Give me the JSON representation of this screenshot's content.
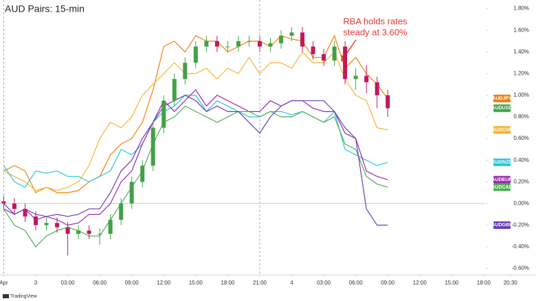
{
  "chart_data": {
    "type": "line",
    "title": "AUD Pairs: 15-min",
    "annotation": [
      "RBA holds rates",
      "steady at 3.60%"
    ],
    "footer": "TradingView",
    "x": [
      -3,
      -2,
      -1,
      0,
      1,
      2,
      3,
      4,
      5,
      6,
      7,
      8,
      9,
      10,
      11,
      12,
      13,
      14,
      15,
      16,
      17,
      18,
      19,
      20,
      21,
      22,
      23,
      24,
      25,
      26,
      27,
      28,
      29,
      30,
      31,
      32,
      33
    ],
    "xlim": [
      -3.35,
      46.9
    ],
    "xticks": [
      {
        "value": -3,
        "label": "Apr"
      },
      {
        "value": 0,
        "label": "3"
      },
      {
        "value": 3,
        "label": "03:00"
      },
      {
        "value": 6,
        "label": "06:00"
      },
      {
        "value": 9,
        "label": "09:00"
      },
      {
        "value": 12,
        "label": "12:00"
      },
      {
        "value": 15,
        "label": "15:00"
      },
      {
        "value": 18,
        "label": "18:00"
      },
      {
        "value": 21,
        "label": "21:00"
      },
      {
        "value": 24,
        "label": "4"
      },
      {
        "value": 27,
        "label": "03:00"
      },
      {
        "value": 30,
        "label": "06:00"
      },
      {
        "value": 33,
        "label": "09:00"
      },
      {
        "value": 36,
        "label": "12:00"
      },
      {
        "value": 39,
        "label": "15:00"
      },
      {
        "value": 42,
        "label": "18:00"
      },
      {
        "value": 44.5,
        "label": "20:30"
      }
    ],
    "ylim": [
      -0.66,
      1.88
    ],
    "yticks": [
      {
        "value": 1.8,
        "label": "1.80%"
      },
      {
        "value": 1.6,
        "label": "1.60%"
      },
      {
        "value": 1.4,
        "label": "1.40%"
      },
      {
        "value": 1.2,
        "label": "1.20%"
      },
      {
        "value": 1.0,
        "label": "1.00%"
      },
      {
        "value": 0.8,
        "label": "0.80%"
      },
      {
        "value": 0.6,
        "label": "0.60%"
      },
      {
        "value": 0.4,
        "label": "0.40%"
      },
      {
        "value": 0.2,
        "label": "0.20%"
      },
      {
        "value": 0,
        "label": "0.00%"
      },
      {
        "value": -0.2,
        "label": "-0.20%"
      },
      {
        "value": -0.4,
        "label": "-0.40%"
      },
      {
        "value": -0.6,
        "label": "-0.60%"
      }
    ],
    "reference_line": 0,
    "session_breaks": [
      -3,
      21
    ],
    "series": [
      {
        "name": "AUDJPY",
        "color": "#f57c00",
        "values": [
          0.3,
          0.35,
          0.3,
          0.1,
          0.15,
          0.1,
          0.1,
          0.12,
          0.2,
          0.25,
          0.45,
          0.55,
          0.6,
          0.75,
          1.05,
          1.45,
          1.5,
          1.4,
          1.55,
          1.5,
          1.5,
          1.4,
          1.45,
          1.5,
          1.5,
          1.45,
          1.55,
          1.52,
          1.5,
          1.35,
          1.35,
          1.55,
          1.25,
          1.35,
          1.2,
          1.1,
          0.97
        ]
      },
      {
        "name": "AUDCHF",
        "color": "#f9b233",
        "values": [
          0.3,
          0.25,
          0.2,
          0.12,
          0.15,
          0.12,
          0.15,
          0.2,
          0.35,
          0.6,
          0.75,
          0.7,
          0.8,
          1.0,
          1.1,
          1.2,
          1.3,
          1.2,
          1.2,
          1.25,
          1.15,
          1.25,
          1.2,
          1.35,
          1.2,
          1.3,
          1.3,
          1.25,
          1.4,
          1.3,
          1.3,
          1.4,
          1.15,
          1.0,
          0.95,
          0.7,
          0.68
        ]
      },
      {
        "name": "AUDNZD",
        "color": "#26c6da",
        "values": [
          0.35,
          0.2,
          0.15,
          0.3,
          0.28,
          0.3,
          0.25,
          0.25,
          0.2,
          0.25,
          0.3,
          0.5,
          0.45,
          0.55,
          0.75,
          0.85,
          0.9,
          1.0,
          1.0,
          0.85,
          0.95,
          0.9,
          0.85,
          0.8,
          0.8,
          0.85,
          0.85,
          0.82,
          0.85,
          0.8,
          0.75,
          0.85,
          0.5,
          0.45,
          0.4,
          0.35,
          0.38
        ]
      },
      {
        "name": "AUDEUR",
        "color": "#9c27b0",
        "values": [
          -0.05,
          -0.1,
          -0.05,
          -0.15,
          -0.12,
          -0.15,
          -0.2,
          -0.18,
          -0.1,
          -0.1,
          0.0,
          0.2,
          0.3,
          0.55,
          0.75,
          0.95,
          0.85,
          0.95,
          1.05,
          0.9,
          1.0,
          0.95,
          0.9,
          0.85,
          0.85,
          0.95,
          0.9,
          0.95,
          0.95,
          0.88,
          0.85,
          0.85,
          0.65,
          0.6,
          0.3,
          0.25,
          0.22
        ]
      },
      {
        "name": "AUDCAD",
        "color": "#4caf50",
        "values": [
          -0.05,
          -0.2,
          -0.25,
          -0.4,
          -0.3,
          -0.25,
          -0.22,
          -0.25,
          -0.3,
          -0.3,
          -0.15,
          0.0,
          0.15,
          0.3,
          0.55,
          0.75,
          0.8,
          0.9,
          0.85,
          0.8,
          0.75,
          0.8,
          0.85,
          0.85,
          0.8,
          0.85,
          0.8,
          0.8,
          0.85,
          0.8,
          0.75,
          0.8,
          0.55,
          0.5,
          0.25,
          0.18,
          0.15
        ]
      },
      {
        "name": "AUDGBP",
        "color": "#673ab7",
        "values": [
          0.0,
          -0.1,
          -0.05,
          -0.1,
          -0.12,
          -0.1,
          -0.12,
          -0.1,
          -0.05,
          -0.05,
          0.1,
          0.3,
          0.4,
          0.6,
          0.75,
          0.9,
          0.95,
          1.0,
          0.95,
          0.85,
          0.9,
          0.85,
          0.85,
          0.75,
          0.65,
          0.8,
          0.9,
          0.95,
          0.95,
          0.95,
          0.95,
          0.85,
          0.7,
          0.6,
          -0.05,
          -0.2,
          -0.2
        ]
      },
      {
        "name": "AUDUSD",
        "type": "candlestick",
        "color": "#43a047",
        "down_color": "#c2185b",
        "open": [
          0.02,
          0.0,
          -0.05,
          -0.12,
          -0.2,
          -0.18,
          -0.22,
          -0.28,
          -0.25,
          -0.28,
          -0.28,
          -0.15,
          0.0,
          0.2,
          0.35,
          0.7,
          0.95,
          1.15,
          1.3,
          1.45,
          1.5,
          1.45,
          1.45,
          1.5,
          1.5,
          1.45,
          1.48,
          1.55,
          1.58,
          1.45,
          1.38,
          1.32,
          1.45,
          1.15,
          1.18,
          1.12,
          1.0
        ],
        "high": [
          0.07,
          0.05,
          0,
          -0.07,
          -0.13,
          -0.13,
          -0.17,
          -0.2,
          -0.2,
          -0.23,
          -0.1,
          0.05,
          0.25,
          0.4,
          0.75,
          1.0,
          1.2,
          1.35,
          1.5,
          1.55,
          1.55,
          1.5,
          1.55,
          1.55,
          1.55,
          1.53,
          1.6,
          1.63,
          1.63,
          1.5,
          1.43,
          1.5,
          1.5,
          1.25,
          1.28,
          1.17,
          1.05
        ],
        "low": [
          -0.05,
          -0.1,
          -0.17,
          -0.25,
          -0.25,
          -0.27,
          -0.48,
          -0.33,
          -0.33,
          -0.38,
          -0.33,
          -0.2,
          -0.05,
          0.15,
          0.3,
          0.65,
          0.9,
          1.1,
          1.25,
          1.4,
          1.4,
          1.4,
          1.4,
          1.45,
          1.4,
          1.4,
          1.43,
          1.5,
          1.4,
          1.33,
          1.27,
          1.27,
          1.1,
          1.05,
          1.02,
          0.88,
          0.8
        ],
        "close": [
          0.0,
          -0.05,
          -0.12,
          -0.2,
          -0.18,
          -0.22,
          -0.28,
          -0.25,
          -0.28,
          -0.28,
          -0.15,
          0.0,
          0.2,
          0.35,
          0.7,
          0.95,
          1.15,
          1.3,
          1.45,
          1.5,
          1.45,
          1.45,
          1.5,
          1.5,
          1.45,
          1.48,
          1.55,
          1.58,
          1.45,
          1.38,
          1.32,
          1.45,
          1.15,
          1.18,
          1.12,
          1.0,
          0.88
        ]
      }
    ]
  }
}
